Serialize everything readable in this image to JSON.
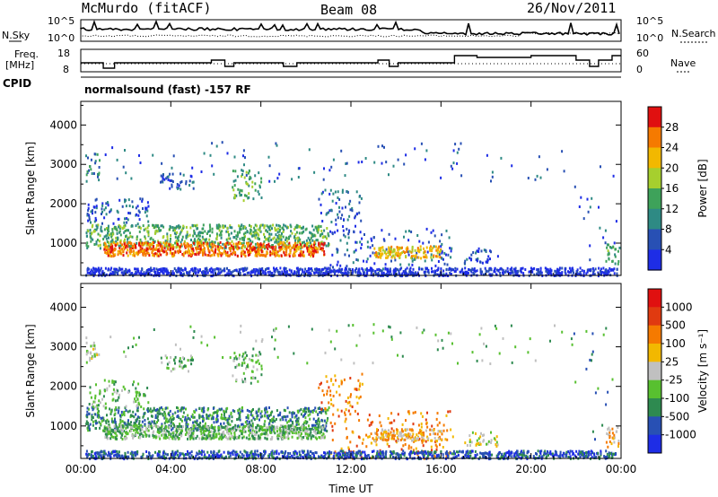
{
  "header": {
    "station": "McMurdo (fitACF)",
    "beam": "Beam 08",
    "date": "26/Nov/2011"
  },
  "panels": {
    "nsky": {
      "label": "N.Sky",
      "right_label": "N.Search",
      "left_ticks": [
        "10^5",
        "10^0"
      ],
      "right_ticks": [
        "10^5",
        "10^0"
      ]
    },
    "freq": {
      "label_line1": "Freq.",
      "label_line2": "[MHz]",
      "right_label": "Nave",
      "left_ticks": [
        "18",
        "8"
      ],
      "right_ticks": [
        "60",
        "0"
      ]
    },
    "cpid": {
      "label": "CPID",
      "text": "normalsound (fast) -157 RF"
    }
  },
  "chart_data": [
    {
      "type": "heatmap",
      "title": "",
      "xlabel": "",
      "ylabel": "Slant Range [km]",
      "xlim": [
        "00:00",
        "24:00"
      ],
      "ylim": [
        180,
        4600
      ],
      "x_ticks": [
        "00:00",
        "04:00",
        "08:00",
        "12:00",
        "16:00",
        "20:00",
        "00:00"
      ],
      "y_ticks": [
        1000,
        2000,
        3000,
        4000
      ],
      "colorbar": {
        "label": "Power [dB]",
        "ticks": [
          "4",
          "8",
          "12",
          "16",
          "20",
          "24",
          "28"
        ],
        "colors": [
          "#1e2de6",
          "#2850b4",
          "#2e8a84",
          "#3ea25a",
          "#a6cf2e",
          "#f2b800",
          "#f57a00",
          "#e01010"
        ],
        "range": [
          0,
          32
        ]
      }
    },
    {
      "type": "heatmap",
      "title": "",
      "xlabel": "Time UT",
      "ylabel": "Slant Range [km]",
      "xlim": [
        "00:00",
        "24:00"
      ],
      "ylim": [
        180,
        4600
      ],
      "x_ticks": [
        "00:00",
        "04:00",
        "08:00",
        "12:00",
        "16:00",
        "20:00",
        "00:00"
      ],
      "y_ticks": [
        1000,
        2000,
        3000,
        4000
      ],
      "colorbar": {
        "label": "Velocity [m s⁻¹]",
        "ticks": [
          "1000",
          "500",
          "100",
          "25",
          "-25",
          "-100",
          "-500",
          "-1000"
        ],
        "colors": [
          "#1e2de6",
          "#2850b4",
          "#2e8a50",
          "#58c030",
          "#c0c0c0",
          "#f2b800",
          "#f57a00",
          "#e03a10",
          "#e01010"
        ]
      }
    }
  ]
}
